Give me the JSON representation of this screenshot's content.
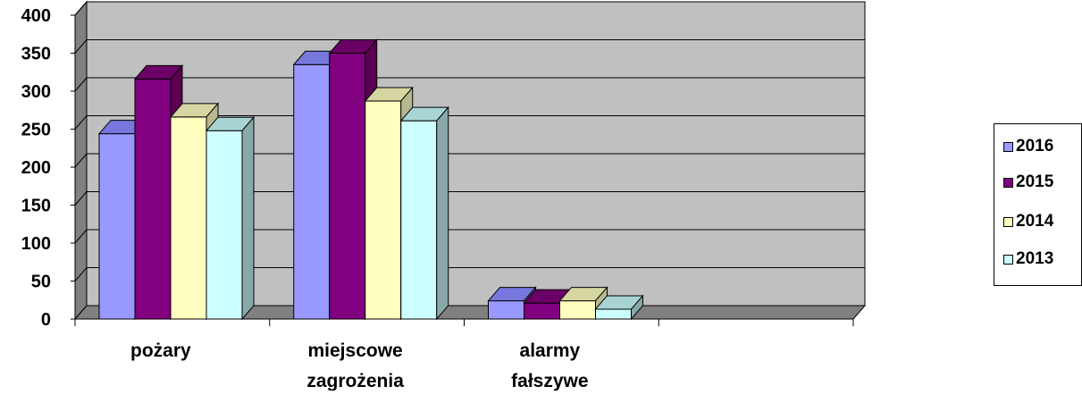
{
  "chart_data": {
    "type": "bar",
    "categories": [
      "pożary",
      "miejscowe zagrożenia",
      "alarmy fałszywe",
      ""
    ],
    "category_lines": [
      [
        "pożary"
      ],
      [
        "miejscowe",
        "zagrożenia"
      ],
      [
        "alarmy",
        "fałszywe"
      ],
      []
    ],
    "series": [
      {
        "name": "2016",
        "values": [
          244,
          335,
          24,
          null
        ],
        "color": "#9999ff",
        "top": "#7777dd",
        "side": "#6e6eb8"
      },
      {
        "name": "2015",
        "values": [
          316,
          350,
          21,
          null
        ],
        "color": "#800080",
        "top": "#6a0066",
        "side": "#5a0050"
      },
      {
        "name": "2014",
        "values": [
          266,
          287,
          24,
          null
        ],
        "color": "#ffffc0",
        "top": "#d6d6a2",
        "side": "#b8b890"
      },
      {
        "name": "2013",
        "values": [
          248,
          261,
          13,
          null
        ],
        "color": "#ccffff",
        "top": "#a8d4d4",
        "side": "#8aa8a8"
      }
    ],
    "yticks": [
      0,
      50,
      100,
      150,
      200,
      250,
      300,
      350,
      400
    ],
    "ylim": [
      0,
      400
    ],
    "grid": true,
    "legend": "right",
    "background": "#c0c0c0",
    "wall_side": "#808080"
  }
}
